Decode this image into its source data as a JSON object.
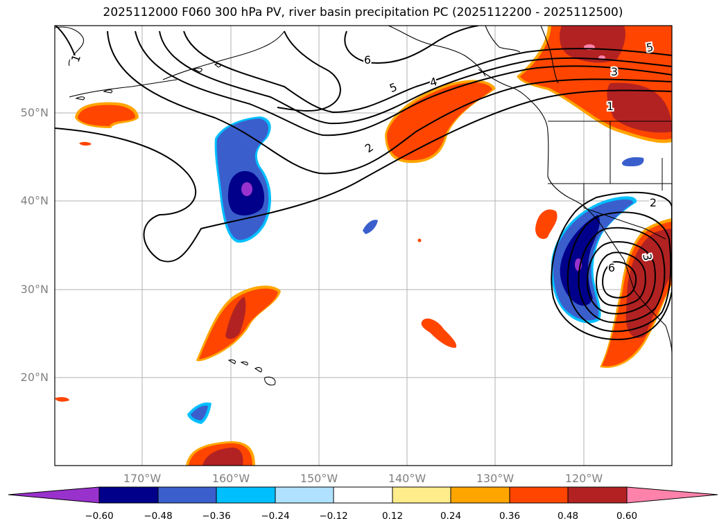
{
  "title": "2025112000 F060 300 hPa PV, river basin precipitation PC (2025112200 - 2025112500)",
  "lat_labels": [
    "50°N",
    "40°N",
    "30°N",
    "20°N"
  ],
  "lon_labels": [
    "170°W",
    "160°W",
    "150°W",
    "140°W",
    "130°W",
    "120°W"
  ],
  "pv_contour_labels": [
    "1",
    "6",
    "5",
    "4",
    "2",
    "5",
    "3",
    "1",
    "2",
    "6",
    "3"
  ],
  "colorbar": {
    "tick_labels": [
      "−0.60",
      "−0.48",
      "−0.36",
      "−0.24",
      "−0.12",
      "0.12",
      "0.24",
      "0.36",
      "0.48",
      "0.60"
    ],
    "colors": [
      "#9932cc",
      "#00008b",
      "#3a5fcd",
      "#00bfff",
      "#b0e2ff",
      "#ffffff",
      "#ffec8b",
      "#ffa500",
      "#ff4500",
      "#b22222",
      "#ff82ab"
    ]
  },
  "colors": {
    "grid": "#b0b0b0",
    "contour": "#000000",
    "label": "#808080"
  }
}
